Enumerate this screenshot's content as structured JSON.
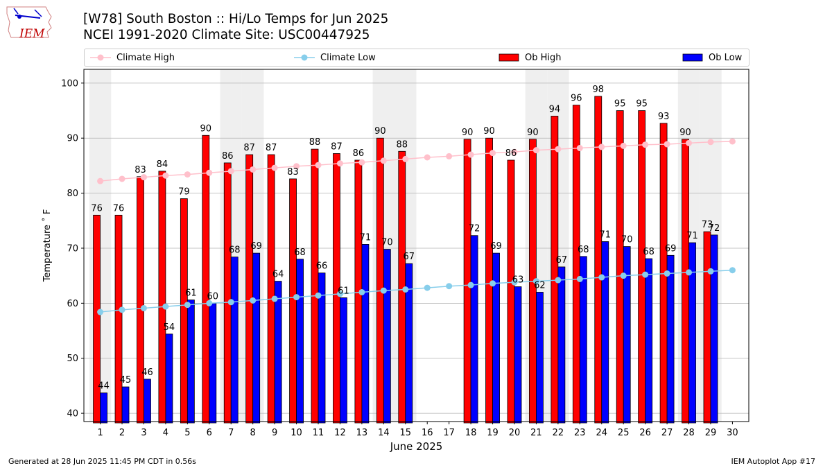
{
  "page": {
    "title_line1": "[W78] South Boston :: Hi/Lo Temps for Jun 2025",
    "title_line2": "NCEI 1991-2020 Climate Site: USC00447925",
    "logo_text": "IEM",
    "footer_left": "Generated at 28 Jun 2025 11:45 PM CDT in 0.56s",
    "footer_right": "IEM Autoplot App #17"
  },
  "legend": {
    "items": [
      {
        "label": "Climate High",
        "color": "#ffc0cb",
        "kind": "line-marker"
      },
      {
        "label": "Climate Low",
        "color": "#87ceeb",
        "kind": "line-marker"
      },
      {
        "label": "Ob High",
        "color": "#ff0000",
        "kind": "bar"
      },
      {
        "label": "Ob Low",
        "color": "#0000ff",
        "kind": "bar"
      }
    ]
  },
  "chart_data": {
    "type": "bar",
    "xlabel": "June 2025",
    "ylabel": "Temperature ˚ F",
    "ylim": [
      38.5,
      102.5
    ],
    "yticks": [
      40,
      50,
      60,
      70,
      80,
      90,
      100
    ],
    "grid": "y",
    "legend_position": "top",
    "categories": [
      1,
      2,
      3,
      4,
      5,
      6,
      7,
      8,
      9,
      10,
      11,
      12,
      13,
      14,
      15,
      16,
      17,
      18,
      19,
      20,
      21,
      22,
      23,
      24,
      25,
      26,
      27,
      28,
      29,
      30
    ],
    "weekend_days": [
      1,
      7,
      8,
      14,
      15,
      21,
      22,
      28,
      29
    ],
    "series": [
      {
        "name": "Ob High",
        "color": "#ff0000",
        "values": [
          76,
          76,
          83,
          84,
          79,
          90.5,
          85.5,
          87,
          87,
          82.6,
          88,
          87.2,
          86,
          90,
          87.6,
          null,
          null,
          89.8,
          90,
          86,
          89.8,
          94,
          96,
          97.6,
          95,
          95,
          92.7,
          89.8,
          73,
          null
        ],
        "labels": [
          "76",
          "76",
          "83",
          "84",
          "79",
          "90",
          "86",
          "87",
          "87",
          "83",
          "88",
          "87",
          "86",
          "90",
          "88",
          "",
          "",
          "90",
          "90",
          "86",
          "90",
          "94",
          "96",
          "98",
          "95",
          "95",
          "93",
          "90",
          "73",
          ""
        ]
      },
      {
        "name": "Ob Low",
        "color": "#0000ff",
        "values": [
          43.7,
          44.8,
          46.2,
          54.4,
          60.6,
          60,
          68.4,
          69.1,
          64,
          68,
          65.5,
          61,
          70.7,
          69.8,
          67.2,
          null,
          null,
          72.3,
          69.1,
          63,
          62,
          66.6,
          68.5,
          71.2,
          70.3,
          68.1,
          68.7,
          71,
          72.4,
          null
        ],
        "labels": [
          "44",
          "45",
          "46",
          "54",
          "61",
          "60",
          "68",
          "69",
          "64",
          "68",
          "66",
          "61",
          "71",
          "70",
          "67",
          "",
          "",
          "72",
          "69",
          "63",
          "62",
          "67",
          "68",
          "71",
          "70",
          "68",
          "69",
          "71",
          "72",
          ""
        ]
      },
      {
        "name": "Climate High",
        "color": "#ffc0cb",
        "values": [
          82.2,
          82.6,
          82.9,
          83.2,
          83.4,
          83.7,
          84,
          84.3,
          84.6,
          84.9,
          85.1,
          85.4,
          85.6,
          85.9,
          86.2,
          86.5,
          86.7,
          87,
          87.3,
          87.5,
          87.8,
          88,
          88.2,
          88.4,
          88.6,
          88.8,
          88.9,
          89.1,
          89.3,
          89.4
        ]
      },
      {
        "name": "Climate Low",
        "color": "#87ceeb",
        "values": [
          58.4,
          58.8,
          59.1,
          59.4,
          59.7,
          60,
          60.2,
          60.5,
          60.8,
          61.1,
          61.4,
          61.7,
          62,
          62.3,
          62.5,
          62.8,
          63.1,
          63.3,
          63.6,
          63.8,
          64,
          64.2,
          64.4,
          64.7,
          65,
          65.2,
          65.4,
          65.6,
          65.8,
          66
        ]
      }
    ]
  }
}
